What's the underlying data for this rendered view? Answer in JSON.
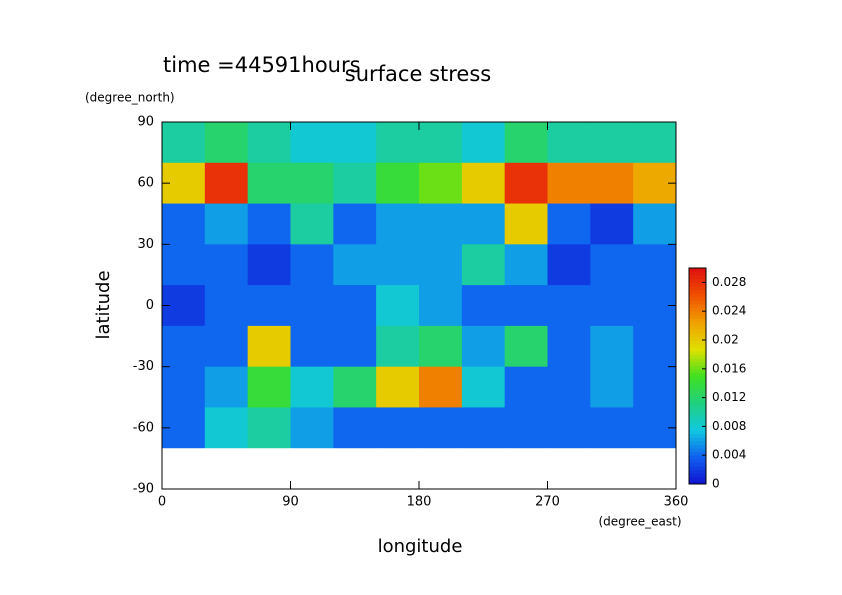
{
  "chart_data": {
    "type": "heatmap",
    "title": "surface stress",
    "subtitle": "time =44591hours",
    "x_label": "longitude",
    "x_unit": "(degree_east)",
    "y_label": "latitude",
    "y_unit": "(degree_north)",
    "x": [
      15,
      45,
      75,
      105,
      135,
      165,
      195,
      225,
      255,
      285,
      315,
      345
    ],
    "y": [
      80,
      60,
      40,
      20,
      0,
      -20,
      -40,
      -60,
      -80
    ],
    "z": [
      [
        0.01,
        0.012,
        0.01,
        0.008,
        0.008,
        0.01,
        0.01,
        0.008,
        0.012,
        0.01,
        0.01,
        0.01
      ],
      [
        0.02,
        0.028,
        0.012,
        0.012,
        0.01,
        0.014,
        0.016,
        0.02,
        0.028,
        0.024,
        0.024,
        0.022
      ],
      [
        0.004,
        0.006,
        0.004,
        0.01,
        0.004,
        0.006,
        0.006,
        0.006,
        0.02,
        0.004,
        0.002,
        0.006
      ],
      [
        0.004,
        0.004,
        0.002,
        0.004,
        0.006,
        0.006,
        0.006,
        0.01,
        0.006,
        0.002,
        0.004,
        0.004
      ],
      [
        0.002,
        0.004,
        0.004,
        0.004,
        0.004,
        0.008,
        0.006,
        0.004,
        0.004,
        0.004,
        0.004,
        0.004
      ],
      [
        0.004,
        0.004,
        0.02,
        0.004,
        0.004,
        0.01,
        0.012,
        0.006,
        0.012,
        0.004,
        0.006,
        0.004
      ],
      [
        0.004,
        0.006,
        0.014,
        0.008,
        0.012,
        0.02,
        0.024,
        0.008,
        0.004,
        0.004,
        0.006,
        0.004
      ],
      [
        0.004,
        0.008,
        0.01,
        0.006,
        0.004,
        0.004,
        0.004,
        0.004,
        0.004,
        0.004,
        0.004,
        0.004
      ],
      [
        0,
        0,
        0,
        0,
        0,
        0,
        0,
        0,
        0,
        0,
        0,
        0
      ]
    ],
    "xlim": [
      0,
      360
    ],
    "xticks": [
      0,
      90,
      180,
      270,
      360
    ],
    "ylim": [
      -90,
      90
    ],
    "yticks": [
      -90,
      -60,
      -30,
      0,
      30,
      60,
      90
    ],
    "zlim": [
      0,
      0.03
    ],
    "zticks": [
      0,
      0.004,
      0.008,
      0.012,
      0.016,
      0.02,
      0.024,
      0.028
    ],
    "colormap": [
      "#ffffff",
      "#1010d0",
      "#1060f0",
      "#10c8e0",
      "#20d080",
      "#40e020",
      "#e0e000",
      "#f0a000",
      "#f05000",
      "#e01010"
    ]
  }
}
